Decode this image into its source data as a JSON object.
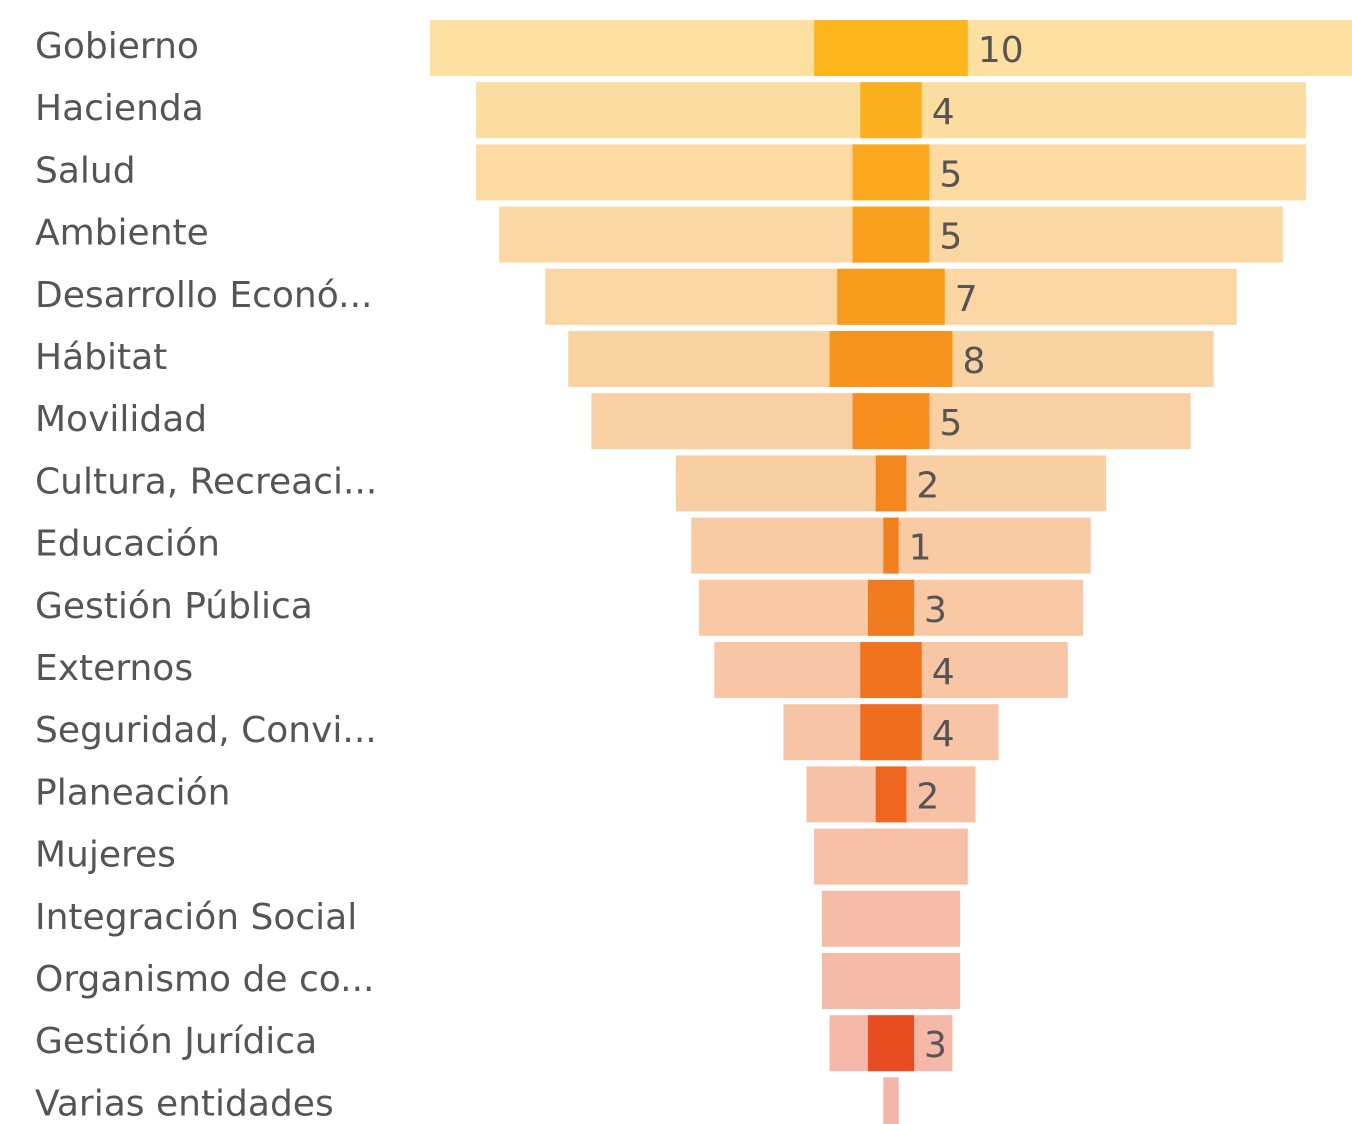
{
  "chart_data": {
    "type": "funnel",
    "categories": [
      "Gobierno",
      "Hacienda",
      "Salud",
      "Ambiente",
      "Desarrollo Econó...",
      "Hábitat",
      "Movilidad",
      "Cultura, Recreaci...",
      "Educación",
      "Gestión Pública",
      "Externos",
      "Seguridad, Convi...",
      "Planeación",
      "Mujeres",
      "Integración Social",
      "Organismo de co...",
      "Gestión Jurídica",
      "Varias entidades"
    ],
    "series": [
      {
        "values": [
          60,
          54,
          54,
          51,
          45,
          42,
          39,
          28,
          26,
          25,
          23,
          14,
          11,
          10,
          9,
          9,
          8,
          1
        ],
        "color_start": "#fddfa0",
        "color_end": "#f4b5a8"
      },
      {
        "values": [
          10,
          4,
          5,
          5,
          7,
          8,
          5,
          2,
          1,
          3,
          4,
          4,
          2,
          null,
          null,
          null,
          3,
          null
        ],
        "color_start": "#fdb51c",
        "color_end": "#e84520"
      }
    ]
  }
}
